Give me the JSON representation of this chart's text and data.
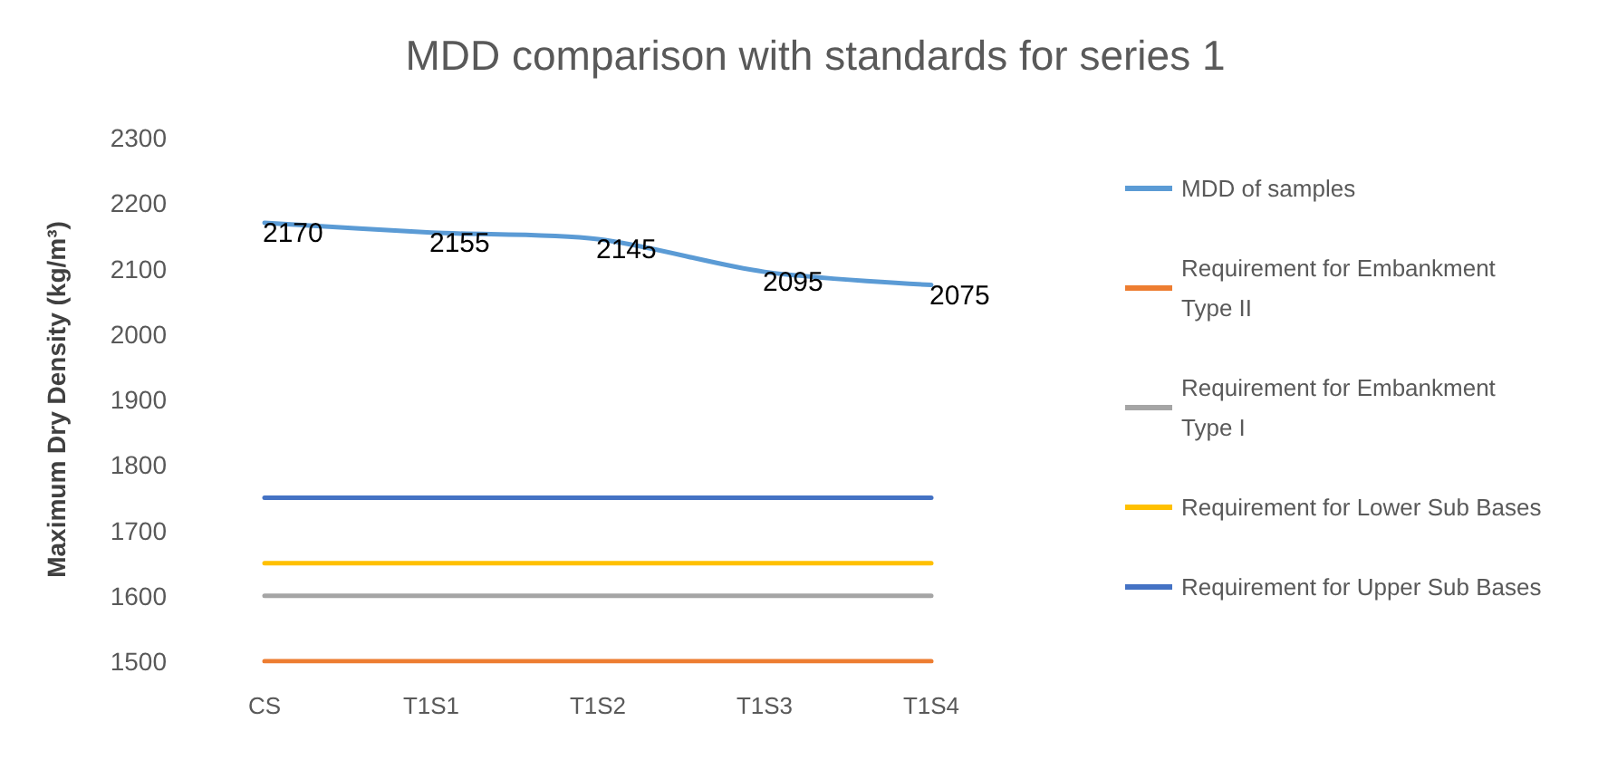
{
  "chart_data": {
    "type": "line",
    "title": "MDD comparison with standards for series 1",
    "ylabel": "Maximum Dry Density (kg/m³)",
    "categories": [
      "CS",
      "T1S1",
      "T1S2",
      "T1S3",
      "T1S4"
    ],
    "series": [
      {
        "name": "MDD of samples",
        "color": "#5b9bd5",
        "values": [
          2170,
          2155,
          2145,
          2095,
          2075
        ],
        "data_labels": true
      },
      {
        "name": "Requirement for Embankment Type II",
        "color": "#ed7d31",
        "values": [
          1500,
          1500,
          1500,
          1500,
          1500
        ]
      },
      {
        "name": "Requirement for Embankment Type I",
        "color": "#a5a5a5",
        "values": [
          1600,
          1600,
          1600,
          1600,
          1600
        ]
      },
      {
        "name": "Requirement for Lower Sub Bases",
        "color": "#ffc000",
        "values": [
          1650,
          1650,
          1650,
          1650,
          1650
        ]
      },
      {
        "name": "Requirement for Upper Sub Bases",
        "color": "#4472c4",
        "values": [
          1750,
          1750,
          1750,
          1750,
          1750
        ]
      }
    ],
    "ylim": [
      1500,
      2300
    ],
    "yticks": [
      1500,
      1600,
      1700,
      1800,
      1900,
      2000,
      2100,
      2200,
      2300
    ],
    "grid": false,
    "legend": "right",
    "marker": "none",
    "line_style": "solid"
  }
}
